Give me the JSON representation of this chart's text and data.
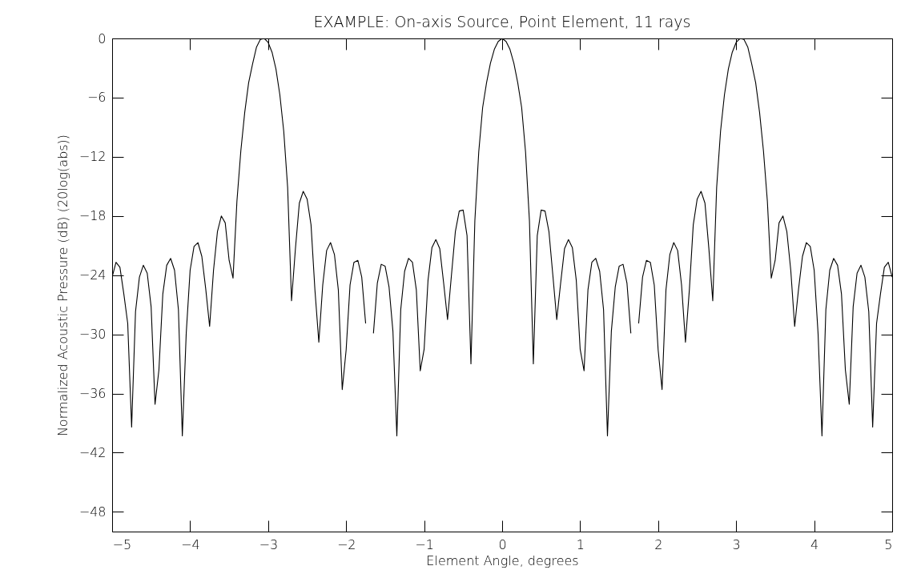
{
  "chart_data": {
    "type": "line",
    "title": "EXAMPLE: On-axis Source, Point Element, 11 rays",
    "xlabel": "Element Angle, degrees",
    "ylabel": "Normalized Acoustic Pressure (dB) (20log(abs))",
    "x": [
      -5,
      -4.95,
      -4.9,
      -4.85,
      -4.8,
      -4.75,
      -4.7,
      -4.65,
      -4.6,
      -4.55,
      -4.5,
      -4.45,
      -4.4,
      -4.35,
      -4.3,
      -4.25,
      -4.2,
      -4.15,
      -4.1,
      -4.05,
      -4,
      -3.95,
      -3.9,
      -3.85,
      -3.8,
      -3.75,
      -3.7,
      -3.65,
      -3.6,
      -3.55,
      -3.5,
      -3.45,
      -3.4,
      -3.35,
      -3.3,
      -3.25,
      -3.2,
      -3.15,
      -3.1,
      -3.05,
      -3,
      -2.95,
      -2.9,
      -2.85,
      -2.8,
      -2.75,
      -2.7,
      -2.65,
      -2.6,
      -2.55,
      -2.5,
      -2.45,
      -2.4,
      -2.35,
      -2.3,
      -2.25,
      -2.2,
      -2.15,
      -2.1,
      -2.05,
      -2,
      -1.95,
      -1.9,
      -1.85,
      -1.8,
      -1.75,
      -1.7,
      -1.65,
      -1.6,
      -1.55,
      -1.5,
      -1.45,
      -1.4,
      -1.35,
      -1.3,
      -1.25,
      -1.2,
      -1.15,
      -1.1,
      -1.05,
      -1,
      -0.95,
      -0.9,
      -0.85,
      -0.8,
      -0.75,
      -0.7,
      -0.65,
      -0.6,
      -0.55,
      -0.5,
      -0.45,
      -0.4,
      -0.35,
      -0.3,
      -0.25,
      -0.2,
      -0.15,
      -0.1,
      -0.05,
      0,
      0.05,
      0.1,
      0.15,
      0.2,
      0.25,
      0.3,
      0.35,
      0.4,
      0.45,
      0.5,
      0.55,
      0.6,
      0.65,
      0.7,
      0.75,
      0.8,
      0.85,
      0.9,
      0.95,
      1,
      1.05,
      1.1,
      1.15,
      1.2,
      1.25,
      1.3,
      1.35,
      1.4,
      1.45,
      1.5,
      1.55,
      1.6,
      1.65,
      1.7,
      1.75,
      1.8,
      1.85,
      1.9,
      1.95,
      2,
      2.05,
      2.1,
      2.15,
      2.2,
      2.25,
      2.3,
      2.35,
      2.4,
      2.45,
      2.5,
      2.55,
      2.6,
      2.65,
      2.7,
      2.75,
      2.8,
      2.85,
      2.9,
      2.95,
      3,
      3.05,
      3.1,
      3.15,
      3.2,
      3.25,
      3.3,
      3.35,
      3.4,
      3.45,
      3.5,
      3.55,
      3.6,
      3.65,
      3.7,
      3.75,
      3.8,
      3.85,
      3.9,
      3.95,
      4,
      4.05,
      4.1,
      4.15,
      4.2,
      4.25,
      4.3,
      4.35,
      4.4,
      4.45,
      4.5,
      4.55,
      4.6,
      4.65,
      4.7,
      4.75,
      4.8,
      4.85,
      4.9,
      4.95,
      5
    ],
    "values": [
      -24.2,
      -22.7,
      -23.2,
      -25.9,
      -28.9,
      -39.4,
      -27.7,
      -24.2,
      -23,
      -23.8,
      -27.2,
      -37.1,
      -33.6,
      -25.9,
      -23,
      -22.3,
      -23.5,
      -27.5,
      -40.3,
      -29.9,
      -23.5,
      -21.1,
      -20.7,
      -22.1,
      -25.4,
      -29.2,
      -23.5,
      -19.6,
      -18,
      -18.7,
      -22.5,
      -24.3,
      -16.5,
      -11.4,
      -7.5,
      -4.5,
      -2.6,
      -0.9,
      -0.1,
      0,
      -0.4,
      -1.4,
      -3.1,
      -5.7,
      -9.4,
      -15.1,
      -26.6,
      -21.3,
      -16.7,
      -15.5,
      -16.3,
      -18.9,
      -25.5,
      -30.8,
      -25,
      -21.5,
      -20.7,
      -21.9,
      -25.5,
      -35.6,
      -31.6,
      -25,
      -22.7,
      -22.5,
      -24.2,
      -28.9,
      null,
      -29.9,
      -24.8,
      -22.9,
      -23.1,
      -25.2,
      -29.7,
      -40.3,
      -27.5,
      -23.6,
      -22.3,
      -22.7,
      -25.5,
      -33.7,
      -31.5,
      -24.5,
      -21.2,
      -20.4,
      -21.3,
      -24.8,
      -28.5,
      -24,
      -19.6,
      -17.5,
      -17.4,
      -20,
      -33,
      -18.5,
      -11.5,
      -7,
      -4.5,
      -2.5,
      -1.1,
      -0.3,
      0,
      -0.3,
      -1.1,
      -2.5,
      -4.5,
      -7,
      -11.5,
      -18.5,
      -33,
      -20,
      -17.4,
      -17.5,
      -19.6,
      -24,
      -28.5,
      -24.8,
      -21.3,
      -20.4,
      -21.2,
      -24.5,
      -31.5,
      -33.7,
      -25.5,
      -22.7,
      -22.3,
      -23.6,
      -27.5,
      -40.3,
      -29.7,
      -25.2,
      -23.1,
      -22.9,
      -24.8,
      -29.9,
      null,
      -28.9,
      -24.2,
      -22.5,
      -22.7,
      -25,
      -31.6,
      -35.6,
      -25.5,
      -21.9,
      -20.7,
      -21.5,
      -25,
      -30.8,
      -25.5,
      -18.9,
      -16.3,
      -15.5,
      -16.7,
      -21.3,
      -26.6,
      -15.1,
      -9.4,
      -5.7,
      -3.1,
      -1.4,
      -0.4,
      0,
      -0.1,
      -0.9,
      -2.6,
      -4.5,
      -7.5,
      -11.4,
      -16.5,
      -24.3,
      -22.5,
      -18.7,
      -18,
      -19.6,
      -23.5,
      -29.2,
      -25.4,
      -22.1,
      -20.7,
      -21.1,
      -23.5,
      -29.9,
      -40.3,
      -27.5,
      -23.5,
      -22.3,
      -23,
      -25.9,
      -33.6,
      -37.1,
      -27.2,
      -23.8,
      -23,
      -24.2,
      -27.7,
      -39.4,
      -28.9,
      -25.9,
      -23.2,
      -22.7,
      -24.2
    ],
    "color": "#000000",
    "line_style": "solid",
    "xlim": [
      -5,
      5
    ],
    "ylim": [
      -50,
      0
    ],
    "xticks": [
      -5,
      -4,
      -3,
      -2,
      -1,
      0,
      1,
      2,
      3,
      4,
      5
    ],
    "yticks": [
      -48,
      -42,
      -36,
      -30,
      -24,
      -18,
      -12,
      -6,
      0
    ]
  }
}
